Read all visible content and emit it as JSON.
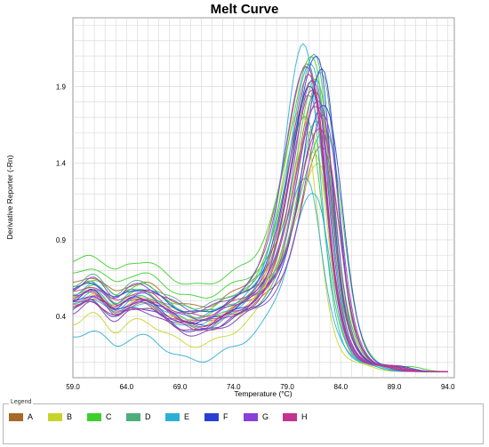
{
  "chart_data": {
    "type": "line",
    "title": "Melt Curve",
    "xlabel": "Temperature (°C)",
    "ylabel": "Derivative Reporter (-Rn)",
    "xlim": [
      59.0,
      94.6
    ],
    "ylim": [
      0.0,
      2.35
    ],
    "xticks": [
      "59.0",
      "64.0",
      "69.0",
      "74.0",
      "79.0",
      "84.0",
      "89.0",
      "94.0"
    ],
    "yticks": [
      "0.4",
      "0.9",
      "1.4",
      "1.9"
    ],
    "grid": true,
    "legend_title": "Legend",
    "legend_position": "bottom",
    "series": [
      {
        "name": "A",
        "color": "#a8682a",
        "curves": [
          {
            "base": 0.56,
            "peak": 2.05,
            "center": 81.5,
            "tail_end": 88.0,
            "variant": 0
          },
          {
            "base": 0.5,
            "peak": 1.95,
            "center": 82.0,
            "tail_end": 88.5,
            "variant": 1
          },
          {
            "base": 0.6,
            "peak": 2.15,
            "center": 81.2,
            "tail_end": 87.5,
            "variant": 2
          },
          {
            "base": 0.46,
            "peak": 1.6,
            "center": 82.5,
            "tail_end": 89.0,
            "variant": 3
          }
        ]
      },
      {
        "name": "B",
        "color": "#c9d42a",
        "curves": [
          {
            "base": 0.48,
            "peak": 1.55,
            "center": 81.8,
            "tail_end": 88.5,
            "variant": 4
          },
          {
            "base": 0.35,
            "peak": 1.7,
            "center": 81.5,
            "tail_end": 88.0,
            "variant": 5
          },
          {
            "base": 0.42,
            "peak": 1.85,
            "center": 80.5,
            "tail_end": 86.0,
            "variant": 6
          },
          {
            "base": 0.52,
            "peak": 1.45,
            "center": 82.2,
            "tail_end": 89.5,
            "variant": 7
          }
        ]
      },
      {
        "name": "C",
        "color": "#3ecf2e",
        "curves": [
          {
            "base": 0.74,
            "peak": 2.2,
            "center": 81.6,
            "tail_end": 88.0,
            "variant": 8
          },
          {
            "base": 0.66,
            "peak": 2.05,
            "center": 82.0,
            "tail_end": 88.5,
            "variant": 9
          },
          {
            "base": 0.58,
            "peak": 1.78,
            "center": 81.0,
            "tail_end": 87.0,
            "variant": 10
          },
          {
            "base": 0.54,
            "peak": 1.7,
            "center": 82.8,
            "tail_end": 90.5,
            "variant": 11
          }
        ]
      },
      {
        "name": "D",
        "color": "#4caf7a",
        "curves": [
          {
            "base": 0.6,
            "peak": 2.25,
            "center": 81.8,
            "tail_end": 88.5,
            "variant": 12
          },
          {
            "base": 0.5,
            "peak": 2.1,
            "center": 82.4,
            "tail_end": 89.0,
            "variant": 13
          },
          {
            "base": 0.56,
            "peak": 1.95,
            "center": 81.3,
            "tail_end": 87.5,
            "variant": 14
          },
          {
            "base": 0.44,
            "peak": 1.75,
            "center": 82.0,
            "tail_end": 88.0,
            "variant": 15
          }
        ]
      },
      {
        "name": "E",
        "color": "#2bb0d6",
        "curves": [
          {
            "base": 0.46,
            "peak": 1.35,
            "center": 81.0,
            "tail_end": 86.5,
            "variant": 16
          },
          {
            "base": 0.25,
            "peak": 1.25,
            "center": 81.8,
            "tail_end": 87.0,
            "variant": 17
          },
          {
            "base": 0.5,
            "peak": 2.3,
            "center": 80.8,
            "tail_end": 86.5,
            "variant": 18
          },
          {
            "base": 0.54,
            "peak": 2.18,
            "center": 81.5,
            "tail_end": 87.5,
            "variant": 19
          }
        ]
      },
      {
        "name": "F",
        "color": "#2a3fd4",
        "curves": [
          {
            "base": 0.5,
            "peak": 2.22,
            "center": 82.0,
            "tail_end": 88.5,
            "variant": 20
          },
          {
            "base": 0.44,
            "peak": 2.12,
            "center": 82.5,
            "tail_end": 89.0,
            "variant": 21
          },
          {
            "base": 0.56,
            "peak": 2.0,
            "center": 81.4,
            "tail_end": 87.5,
            "variant": 22
          },
          {
            "base": 0.48,
            "peak": 1.88,
            "center": 82.8,
            "tail_end": 89.5,
            "variant": 23
          }
        ]
      },
      {
        "name": "G",
        "color": "#8a3fd8",
        "curves": [
          {
            "base": 0.52,
            "peak": 2.05,
            "center": 81.7,
            "tail_end": 88.0,
            "variant": 24
          },
          {
            "base": 0.46,
            "peak": 1.92,
            "center": 82.2,
            "tail_end": 88.5,
            "variant": 25
          },
          {
            "base": 0.58,
            "peak": 2.15,
            "center": 81.2,
            "tail_end": 87.5,
            "variant": 26
          },
          {
            "base": 0.42,
            "peak": 1.8,
            "center": 82.6,
            "tail_end": 89.0,
            "variant": 27
          }
        ]
      },
      {
        "name": "H",
        "color": "#c4338f",
        "curves": [
          {
            "base": 0.5,
            "peak": 1.98,
            "center": 81.6,
            "tail_end": 88.0,
            "variant": 28
          },
          {
            "base": 0.44,
            "peak": 1.85,
            "center": 82.0,
            "tail_end": 88.5,
            "variant": 29
          },
          {
            "base": 0.54,
            "peak": 2.08,
            "center": 81.3,
            "tail_end": 87.5,
            "variant": 30
          },
          {
            "base": 0.48,
            "peak": 1.72,
            "center": 82.4,
            "tail_end": 89.0,
            "variant": 31
          }
        ]
      }
    ]
  }
}
